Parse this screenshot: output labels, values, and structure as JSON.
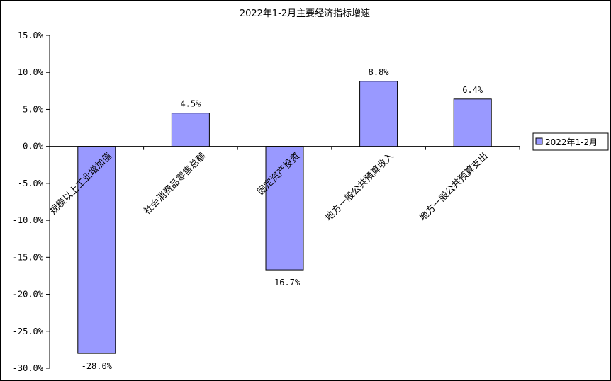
{
  "chart_data": {
    "type": "bar",
    "title": "2022年1-2月主要经济指标增速",
    "categories": [
      "规模以上工业增加值",
      "社会消费品零售总额",
      "固定资产投资",
      "地方一般公共预算收入",
      "地方一般公共预算支出"
    ],
    "series": [
      {
        "name": "2022年1-2月",
        "values": [
          -28.0,
          4.5,
          -16.7,
          8.8,
          6.4
        ],
        "data_labels": [
          "-28.0%",
          "4.5%",
          "-16.7%",
          "8.8%",
          "6.4%"
        ]
      }
    ],
    "y_ticks": [
      "15.0%",
      "10.0%",
      "5.0%",
      "0.0%",
      "-5.0%",
      "-10.0%",
      "-15.0%",
      "-20.0%",
      "-25.0%",
      "-30.0%"
    ],
    "ylim": [
      -30,
      15
    ],
    "grid": false,
    "legend_position": "right",
    "colors": {
      "bar_fill": "#9999ff",
      "bar_stroke": "#000000"
    }
  }
}
